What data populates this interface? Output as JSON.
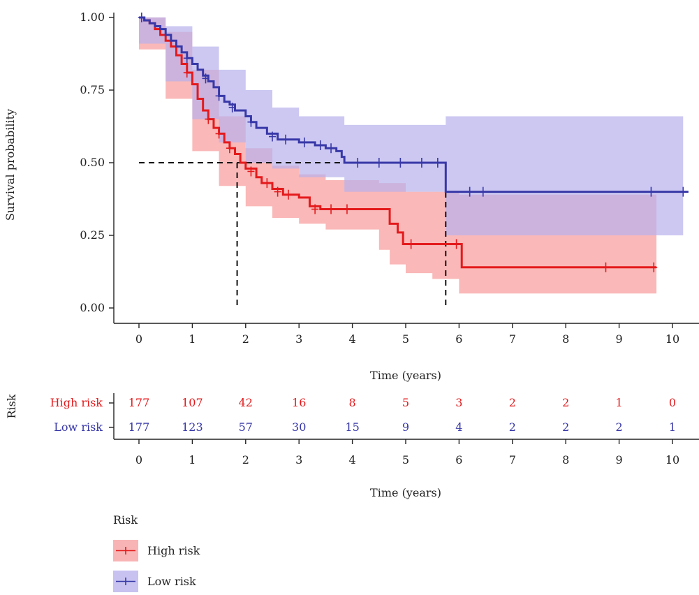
{
  "chart_data": {
    "type": "survival-curve",
    "ylabel": "Survival probability",
    "xlabel": "Time (years)",
    "x_ticks": [
      0,
      1,
      2,
      3,
      4,
      5,
      6,
      7,
      8,
      9,
      10
    ],
    "y_ticks": [
      "0.00",
      "0.25",
      "0.50",
      "0.75",
      "1.00"
    ],
    "xlim": [
      0,
      10.4
    ],
    "ylim": [
      0,
      1
    ],
    "median_survival": {
      "y": 0.5,
      "High risk": 1.84,
      "Low risk": 5.75
    },
    "series": [
      {
        "name": "High risk",
        "color": "#e41a1c",
        "band_color": "#f8a0a0",
        "steps": [
          [
            0,
            1.0
          ],
          [
            0.1,
            0.99
          ],
          [
            0.2,
            0.98
          ],
          [
            0.3,
            0.96
          ],
          [
            0.4,
            0.94
          ],
          [
            0.5,
            0.92
          ],
          [
            0.6,
            0.9
          ],
          [
            0.7,
            0.87
          ],
          [
            0.8,
            0.84
          ],
          [
            0.9,
            0.81
          ],
          [
            1.0,
            0.77
          ],
          [
            1.1,
            0.72
          ],
          [
            1.2,
            0.68
          ],
          [
            1.3,
            0.65
          ],
          [
            1.4,
            0.62
          ],
          [
            1.5,
            0.6
          ],
          [
            1.6,
            0.57
          ],
          [
            1.7,
            0.55
          ],
          [
            1.8,
            0.53
          ],
          [
            1.9,
            0.5
          ],
          [
            2.0,
            0.48
          ],
          [
            2.2,
            0.45
          ],
          [
            2.3,
            0.43
          ],
          [
            2.5,
            0.41
          ],
          [
            2.7,
            0.39
          ],
          [
            3.0,
            0.38
          ],
          [
            3.2,
            0.35
          ],
          [
            3.4,
            0.34
          ],
          [
            3.8,
            0.34
          ],
          [
            4.6,
            0.34
          ],
          [
            4.7,
            0.29
          ],
          [
            4.85,
            0.26
          ],
          [
            4.95,
            0.22
          ],
          [
            5.5,
            0.22
          ],
          [
            6.05,
            0.22
          ],
          [
            6.05,
            0.14
          ],
          [
            9.7,
            0.14
          ]
        ],
        "upper": [
          [
            0,
            1.0
          ],
          [
            0.5,
            0.95
          ],
          [
            1.0,
            0.82
          ],
          [
            1.5,
            0.66
          ],
          [
            2.0,
            0.55
          ],
          [
            2.5,
            0.49
          ],
          [
            3.0,
            0.46
          ],
          [
            3.5,
            0.44
          ],
          [
            4.5,
            0.43
          ],
          [
            5.0,
            0.4
          ],
          [
            6.0,
            0.39
          ],
          [
            9.7,
            0.39
          ]
        ],
        "lower": [
          [
            0,
            1.0
          ],
          [
            0.5,
            0.89
          ],
          [
            1.0,
            0.72
          ],
          [
            1.5,
            0.54
          ],
          [
            2.0,
            0.42
          ],
          [
            2.5,
            0.35
          ],
          [
            3.0,
            0.31
          ],
          [
            3.5,
            0.29
          ],
          [
            4.5,
            0.27
          ],
          [
            4.7,
            0.2
          ],
          [
            5.0,
            0.15
          ],
          [
            5.5,
            0.12
          ],
          [
            6.0,
            0.1
          ],
          [
            6.05,
            0.05
          ],
          [
            9.7,
            0.05
          ]
        ],
        "censors": [
          [
            0.9,
            0.81
          ],
          [
            1.3,
            0.65
          ],
          [
            1.5,
            0.6
          ],
          [
            1.7,
            0.55
          ],
          [
            2.1,
            0.47
          ],
          [
            2.4,
            0.43
          ],
          [
            2.6,
            0.4
          ],
          [
            2.8,
            0.39
          ],
          [
            3.3,
            0.34
          ],
          [
            3.6,
            0.34
          ],
          [
            3.9,
            0.34
          ],
          [
            5.1,
            0.22
          ],
          [
            5.95,
            0.22
          ],
          [
            8.75,
            0.14
          ],
          [
            9.65,
            0.14
          ]
        ]
      },
      {
        "name": "Low risk",
        "color": "#3838a8",
        "band_color": "#b7b0ec",
        "steps": [
          [
            0,
            1.0
          ],
          [
            0.1,
            0.99
          ],
          [
            0.2,
            0.98
          ],
          [
            0.3,
            0.97
          ],
          [
            0.4,
            0.96
          ],
          [
            0.5,
            0.94
          ],
          [
            0.6,
            0.92
          ],
          [
            0.7,
            0.9
          ],
          [
            0.8,
            0.88
          ],
          [
            0.9,
            0.86
          ],
          [
            1.0,
            0.84
          ],
          [
            1.1,
            0.82
          ],
          [
            1.2,
            0.8
          ],
          [
            1.3,
            0.78
          ],
          [
            1.4,
            0.76
          ],
          [
            1.5,
            0.73
          ],
          [
            1.6,
            0.71
          ],
          [
            1.7,
            0.7
          ],
          [
            1.8,
            0.68
          ],
          [
            2.0,
            0.66
          ],
          [
            2.1,
            0.64
          ],
          [
            2.2,
            0.62
          ],
          [
            2.4,
            0.6
          ],
          [
            2.6,
            0.58
          ],
          [
            2.8,
            0.58
          ],
          [
            3.0,
            0.57
          ],
          [
            3.3,
            0.56
          ],
          [
            3.5,
            0.55
          ],
          [
            3.7,
            0.54
          ],
          [
            3.8,
            0.52
          ],
          [
            3.85,
            0.5
          ],
          [
            5.75,
            0.5
          ],
          [
            5.75,
            0.4
          ],
          [
            10.3,
            0.4
          ]
        ],
        "upper": [
          [
            0,
            1.0
          ],
          [
            0.5,
            0.97
          ],
          [
            1.0,
            0.9
          ],
          [
            1.5,
            0.82
          ],
          [
            2.0,
            0.75
          ],
          [
            2.5,
            0.69
          ],
          [
            3.0,
            0.66
          ],
          [
            3.85,
            0.63
          ],
          [
            5.75,
            0.63
          ],
          [
            5.75,
            0.66
          ],
          [
            10.2,
            0.66
          ]
        ],
        "lower": [
          [
            0,
            1.0
          ],
          [
            0.5,
            0.91
          ],
          [
            1.0,
            0.78
          ],
          [
            1.5,
            0.65
          ],
          [
            2.0,
            0.57
          ],
          [
            2.5,
            0.5
          ],
          [
            3.0,
            0.48
          ],
          [
            3.85,
            0.45
          ],
          [
            5.0,
            0.4
          ],
          [
            5.75,
            0.4
          ],
          [
            5.75,
            0.25
          ],
          [
            10.2,
            0.25
          ]
        ],
        "censors": [
          [
            0.05,
            1.0
          ],
          [
            0.9,
            0.86
          ],
          [
            1.25,
            0.79
          ],
          [
            1.5,
            0.73
          ],
          [
            1.75,
            0.69
          ],
          [
            2.1,
            0.64
          ],
          [
            2.5,
            0.59
          ],
          [
            2.75,
            0.58
          ],
          [
            3.1,
            0.57
          ],
          [
            3.4,
            0.56
          ],
          [
            3.6,
            0.55
          ],
          [
            4.1,
            0.5
          ],
          [
            4.5,
            0.5
          ],
          [
            4.9,
            0.5
          ],
          [
            5.3,
            0.5
          ],
          [
            5.6,
            0.5
          ],
          [
            6.2,
            0.4
          ],
          [
            6.45,
            0.4
          ],
          [
            9.6,
            0.4
          ],
          [
            10.2,
            0.4
          ]
        ]
      }
    ]
  },
  "risk_table": {
    "title": "Risk",
    "xlabel": "Time (years)",
    "x_ticks": [
      0,
      1,
      2,
      3,
      4,
      5,
      6,
      7,
      8,
      9,
      10
    ],
    "rows": [
      {
        "label": "High risk",
        "color": "#e41a1c",
        "counts": [
          177,
          107,
          42,
          16,
          8,
          5,
          3,
          2,
          2,
          1,
          0
        ]
      },
      {
        "label": "Low risk",
        "color": "#3838a8",
        "counts": [
          177,
          123,
          57,
          30,
          15,
          9,
          4,
          2,
          2,
          2,
          1
        ]
      }
    ]
  },
  "legend": {
    "title": "Risk",
    "items": [
      {
        "label": "High risk",
        "color": "#e41a1c",
        "fill": "#f8b4b4"
      },
      {
        "label": "Low risk",
        "color": "#3838a8",
        "fill": "#c7c2f0"
      }
    ]
  }
}
